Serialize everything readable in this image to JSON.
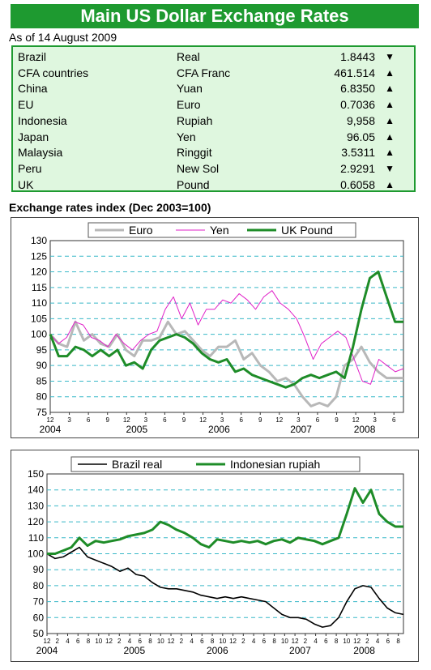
{
  "header": {
    "title": "Main US Dollar Exchange Rates",
    "as_of": "As of 14 August 2009"
  },
  "rates": [
    {
      "country": "Brazil",
      "currency": "Real",
      "value": "1.8443",
      "direction": "down"
    },
    {
      "country": "CFA countries",
      "currency": "CFA Franc",
      "value": "461.514",
      "direction": "up"
    },
    {
      "country": "China",
      "currency": "Yuan",
      "value": "6.8350",
      "direction": "up"
    },
    {
      "country": "EU",
      "currency": "Euro",
      "value": "0.7036",
      "direction": "up"
    },
    {
      "country": "Indonesia",
      "currency": "Rupiah",
      "value": "9,958",
      "direction": "up"
    },
    {
      "country": "Japan",
      "currency": "Yen",
      "value": "96.05",
      "direction": "up"
    },
    {
      "country": "Malaysia",
      "currency": "Ringgit",
      "value": "3.5311",
      "direction": "up"
    },
    {
      "country": "Peru",
      "currency": "New Sol",
      "value": "2.9291",
      "direction": "down"
    },
    {
      "country": "UK",
      "currency": "Pound",
      "value": "0.6058",
      "direction": "up"
    }
  ],
  "arrow_glyphs": {
    "up": "▲",
    "down": "▼"
  },
  "chart_data": [
    {
      "type": "line",
      "title": "Exchange rates index (Dec 2003=100)",
      "xlabel": "",
      "ylabel": "",
      "ylim": [
        75,
        130
      ],
      "yticks": [
        75,
        80,
        85,
        90,
        95,
        100,
        105,
        110,
        115,
        120,
        125,
        130
      ],
      "x_month_ticks": [
        "12",
        "3",
        "6",
        "9",
        "12",
        "3",
        "6",
        "9",
        "12",
        "3",
        "6",
        "9",
        "12",
        "3",
        "6",
        "9",
        "12",
        "3",
        "6"
      ],
      "x_year_labels": [
        "2004",
        "2005",
        "2006",
        "2007",
        "2008"
      ],
      "legend_position": "top",
      "grid": true,
      "series": [
        {
          "name": "Euro",
          "color": "#b8b8b8",
          "width": 3,
          "values": [
            100,
            97,
            96,
            104,
            98,
            100,
            97,
            96,
            100,
            95,
            93,
            98,
            98,
            99,
            104,
            100,
            101,
            98,
            95,
            93,
            96,
            96,
            98,
            92,
            94,
            90,
            88,
            85,
            86,
            84,
            80,
            77,
            78,
            77,
            80,
            90,
            92,
            96,
            91,
            88,
            86,
            86,
            86
          ]
        },
        {
          "name": "Yen",
          "color": "#e020c8",
          "width": 1,
          "values": [
            100,
            97,
            99,
            104,
            103,
            99,
            98,
            96,
            100,
            97,
            95,
            98,
            100,
            101,
            108,
            112,
            105,
            110,
            103,
            108,
            108,
            111,
            110,
            113,
            111,
            108,
            112,
            114,
            110,
            108,
            105,
            99,
            92,
            97,
            99,
            101,
            99,
            92,
            85,
            84,
            92,
            90,
            88,
            89
          ]
        },
        {
          "name": "UK Pound",
          "color": "#1e8c28",
          "width": 3,
          "values": [
            100,
            93,
            93,
            96,
            95,
            93,
            95,
            93,
            95,
            90,
            91,
            89,
            95,
            98,
            99,
            100,
            99,
            97,
            94,
            92,
            91,
            92,
            88,
            89,
            87,
            86,
            85,
            84,
            83,
            84,
            86,
            87,
            86,
            87,
            88,
            86,
            96,
            108,
            118,
            120,
            112,
            104,
            104
          ]
        }
      ]
    },
    {
      "type": "line",
      "title": "",
      "xlabel": "",
      "ylabel": "",
      "ylim": [
        50,
        150
      ],
      "yticks": [
        50,
        60,
        70,
        80,
        90,
        100,
        110,
        120,
        130,
        140,
        150
      ],
      "x_month_ticks": [
        "12",
        "2",
        "4",
        "6",
        "8",
        "10",
        "12",
        "2",
        "4",
        "6",
        "8",
        "10",
        "12",
        "2",
        "4",
        "6",
        "8",
        "10",
        "12",
        "2",
        "4",
        "6",
        "8",
        "10",
        "12",
        "2",
        "4",
        "6",
        "8",
        "10",
        "12",
        "2",
        "4",
        "6",
        "8"
      ],
      "x_year_labels": [
        "2004",
        "2005",
        "2006",
        "2007",
        "2008"
      ],
      "legend_position": "top",
      "grid": true,
      "series": [
        {
          "name": "Brazil real",
          "color": "#000000",
          "width": 1.6,
          "values": [
            100,
            97,
            98,
            101,
            104,
            98,
            96,
            94,
            92,
            89,
            91,
            87,
            86,
            82,
            79,
            78,
            78,
            77,
            76,
            74,
            73,
            72,
            73,
            72,
            73,
            72,
            71,
            70,
            66,
            62,
            60,
            60,
            59,
            56,
            54,
            55,
            60,
            70,
            78,
            80,
            79,
            72,
            66,
            63,
            62
          ]
        },
        {
          "name": "Indonesian rupiah",
          "color": "#1e8c28",
          "width": 3,
          "values": [
            100,
            100,
            102,
            104,
            110,
            105,
            108,
            107,
            108,
            109,
            111,
            112,
            113,
            115,
            120,
            118,
            115,
            113,
            110,
            106,
            104,
            109,
            108,
            107,
            108,
            107,
            108,
            106,
            108,
            109,
            107,
            110,
            109,
            108,
            106,
            108,
            110,
            125,
            141,
            132,
            140,
            125,
            120,
            117,
            117
          ]
        }
      ]
    }
  ]
}
